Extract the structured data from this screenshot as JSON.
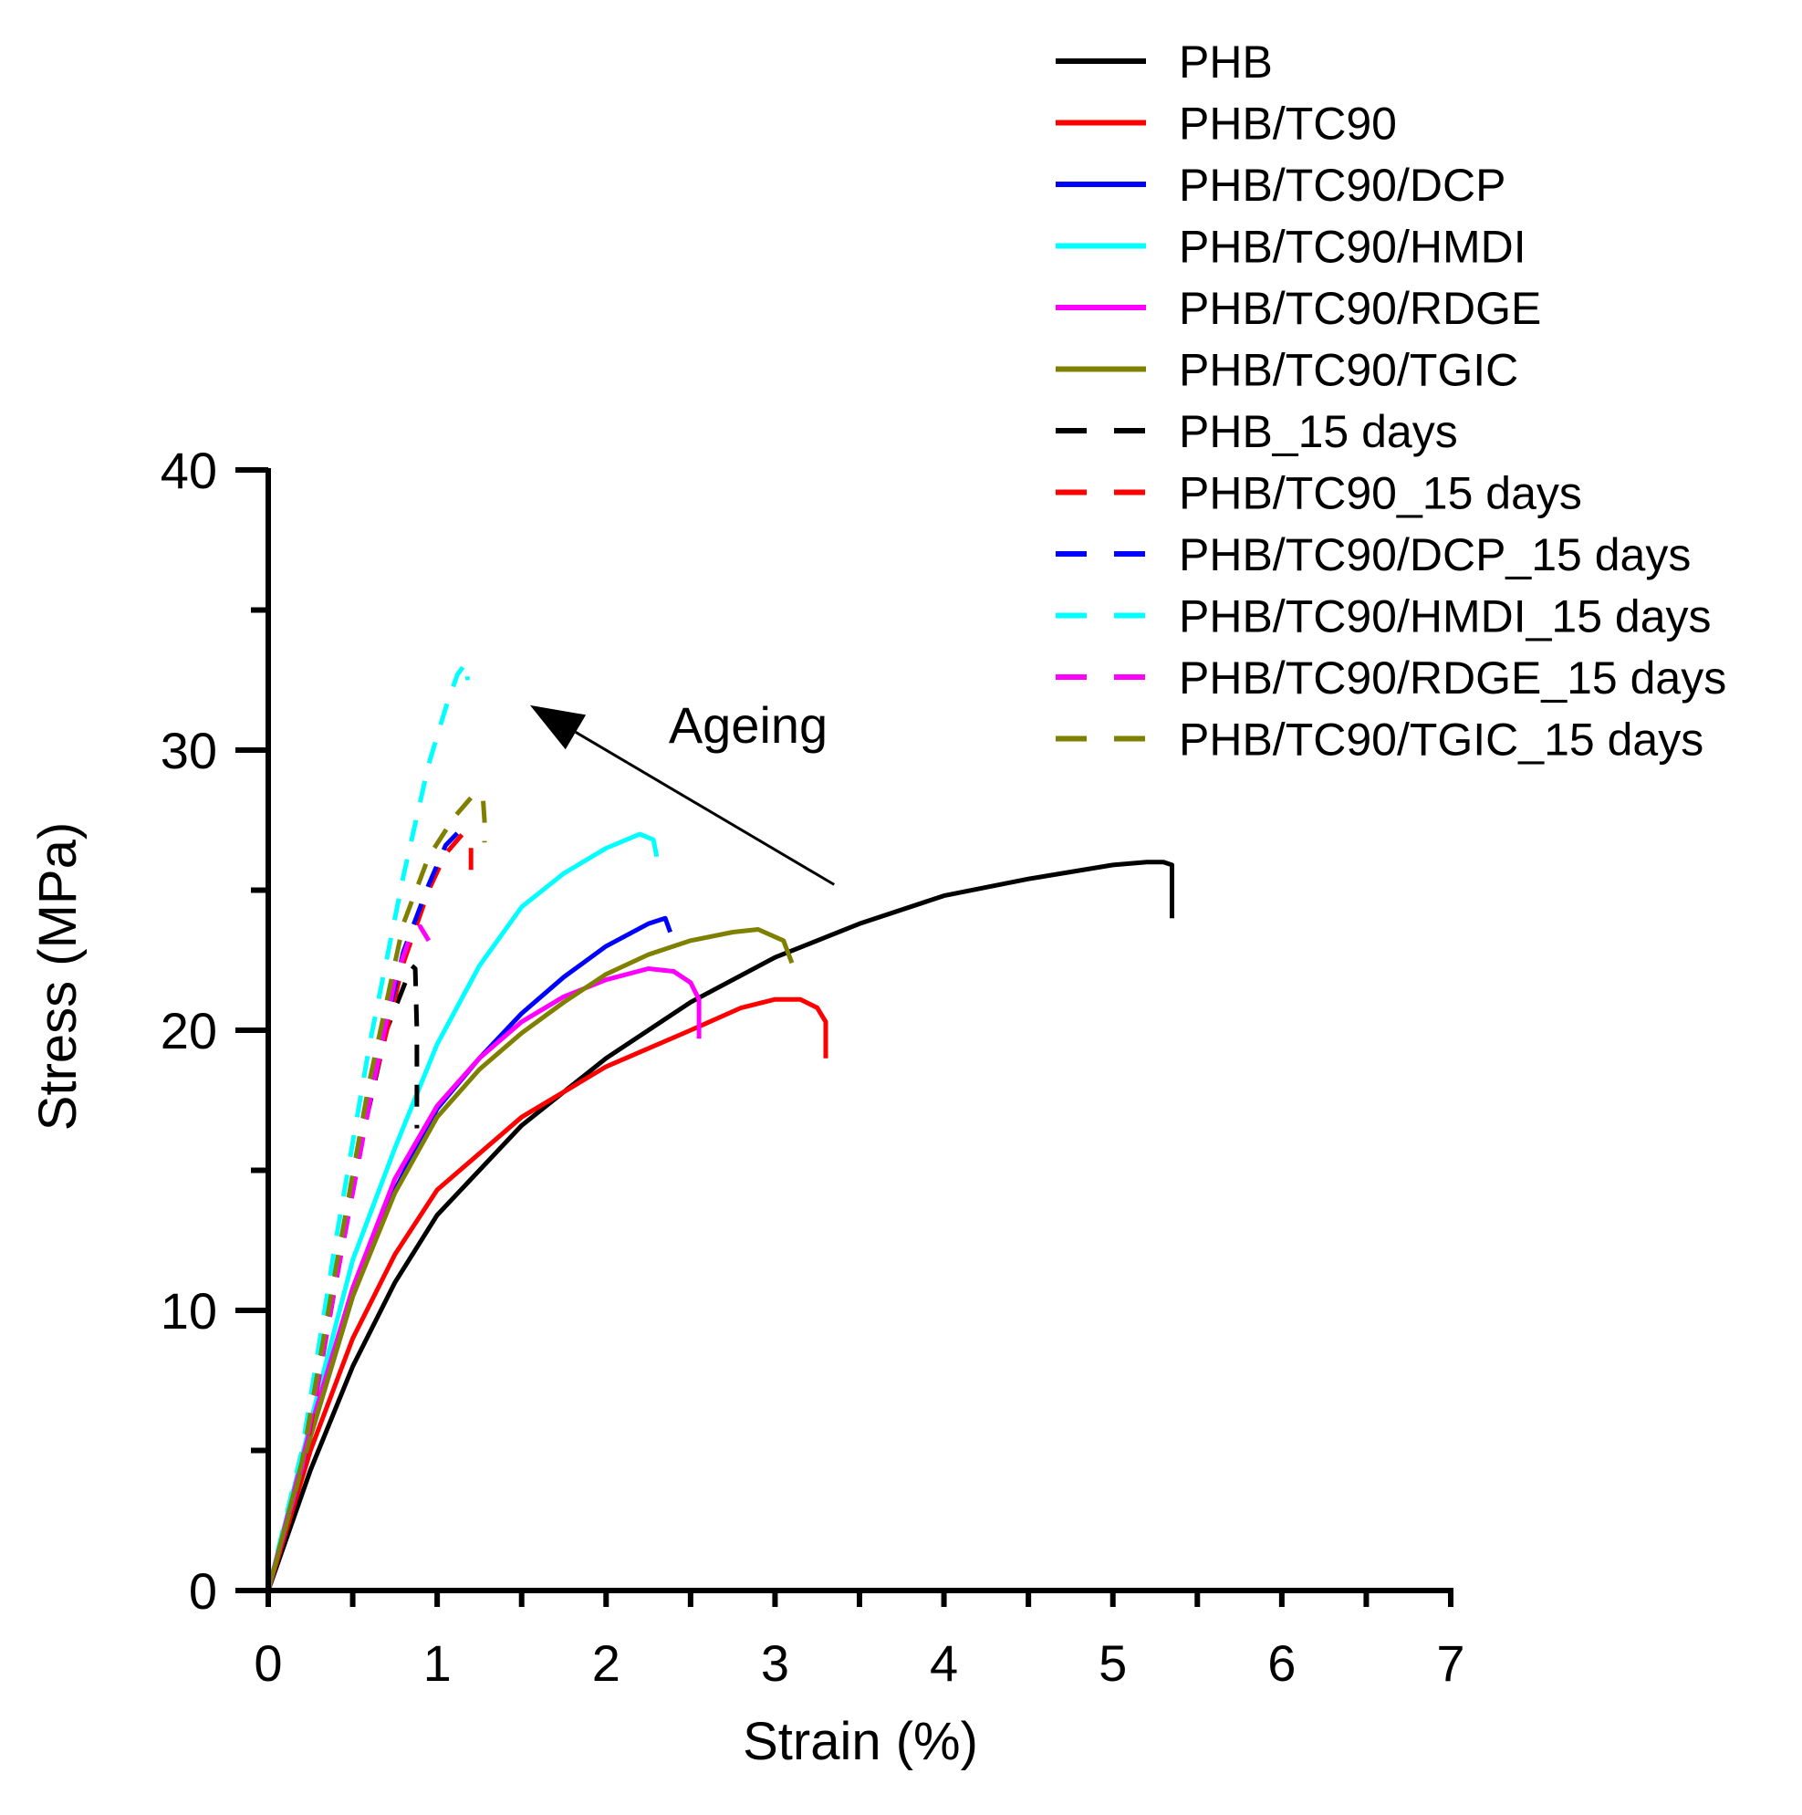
{
  "chart_data": {
    "type": "line",
    "title": "",
    "xlabel": "Strain (%)",
    "ylabel": "Stress (MPa)",
    "xlim": [
      0,
      7
    ],
    "ylim": [
      0,
      40
    ],
    "xticks": [
      0,
      1,
      2,
      3,
      4,
      5,
      6,
      7
    ],
    "yticks": [
      0,
      10,
      20,
      30,
      40
    ],
    "x_minor_step": 0.5,
    "y_minor_step": 5,
    "grid": false,
    "legend_position": "top-right",
    "annotation": {
      "text": "Ageing",
      "arrow_from": [
        3.35,
        25.2
      ],
      "arrow_to": [
        1.55,
        31.6
      ]
    },
    "series": [
      {
        "name": "PHB",
        "color": "#000000",
        "dash": false,
        "points": [
          [
            0,
            0
          ],
          [
            0.25,
            4.3
          ],
          [
            0.5,
            8
          ],
          [
            0.75,
            11
          ],
          [
            1,
            13.4
          ],
          [
            1.5,
            16.6
          ],
          [
            2,
            19
          ],
          [
            2.5,
            21
          ],
          [
            3,
            22.6
          ],
          [
            3.5,
            23.8
          ],
          [
            4,
            24.8
          ],
          [
            4.5,
            25.4
          ],
          [
            5,
            25.9
          ],
          [
            5.2,
            26
          ],
          [
            5.3,
            26
          ],
          [
            5.35,
            25.9
          ],
          [
            5.35,
            24
          ]
        ]
      },
      {
        "name": "PHB/TC90",
        "color": "#ff0000",
        "dash": false,
        "points": [
          [
            0,
            0
          ],
          [
            0.25,
            5
          ],
          [
            0.5,
            9
          ],
          [
            0.75,
            12
          ],
          [
            1,
            14.3
          ],
          [
            1.5,
            16.9
          ],
          [
            2,
            18.7
          ],
          [
            2.5,
            20
          ],
          [
            2.8,
            20.8
          ],
          [
            3,
            21.1
          ],
          [
            3.15,
            21.1
          ],
          [
            3.25,
            20.8
          ],
          [
            3.3,
            20.3
          ],
          [
            3.3,
            19
          ]
        ]
      },
      {
        "name": "PHB/TC90/DCP",
        "color": "#0000ff",
        "dash": false,
        "points": [
          [
            0,
            0
          ],
          [
            0.25,
            5.5
          ],
          [
            0.5,
            10.5
          ],
          [
            0.75,
            14.3
          ],
          [
            1,
            17.2
          ],
          [
            1.25,
            19
          ],
          [
            1.5,
            20.6
          ],
          [
            1.75,
            21.9
          ],
          [
            2,
            23
          ],
          [
            2.25,
            23.8
          ],
          [
            2.35,
            24
          ],
          [
            2.38,
            23.5
          ]
        ]
      },
      {
        "name": "PHB/TC90/HMDI",
        "color": "#00ffff",
        "dash": false,
        "points": [
          [
            0,
            0
          ],
          [
            0.25,
            6
          ],
          [
            0.5,
            11.8
          ],
          [
            0.75,
            15.8
          ],
          [
            1,
            19.5
          ],
          [
            1.25,
            22.3
          ],
          [
            1.5,
            24.4
          ],
          [
            1.75,
            25.6
          ],
          [
            2,
            26.5
          ],
          [
            2.2,
            27
          ],
          [
            2.28,
            26.8
          ],
          [
            2.3,
            26.2
          ]
        ]
      },
      {
        "name": "PHB/TC90/RDGE",
        "color": "#ff00ff",
        "dash": false,
        "points": [
          [
            0,
            0
          ],
          [
            0.25,
            5.8
          ],
          [
            0.5,
            10.8
          ],
          [
            0.75,
            14.7
          ],
          [
            1,
            17.3
          ],
          [
            1.25,
            19
          ],
          [
            1.5,
            20.3
          ],
          [
            1.75,
            21.2
          ],
          [
            2,
            21.8
          ],
          [
            2.25,
            22.2
          ],
          [
            2.4,
            22.1
          ],
          [
            2.5,
            21.7
          ],
          [
            2.55,
            21.1
          ],
          [
            2.55,
            19.7
          ]
        ]
      },
      {
        "name": "PHB/TC90/TGIC",
        "color": "#808000",
        "dash": false,
        "points": [
          [
            0,
            0
          ],
          [
            0.25,
            5.5
          ],
          [
            0.5,
            10.5
          ],
          [
            0.75,
            14.2
          ],
          [
            1,
            16.9
          ],
          [
            1.25,
            18.6
          ],
          [
            1.5,
            19.9
          ],
          [
            1.75,
            21
          ],
          [
            2,
            22
          ],
          [
            2.25,
            22.7
          ],
          [
            2.5,
            23.2
          ],
          [
            2.75,
            23.5
          ],
          [
            2.9,
            23.6
          ],
          [
            3.05,
            23.2
          ],
          [
            3.1,
            22.4
          ]
        ]
      },
      {
        "name": "PHB_15 days",
        "color": "#000000",
        "dash": true,
        "points": [
          [
            0,
            0
          ],
          [
            0.2,
            4.2
          ],
          [
            0.4,
            11
          ],
          [
            0.55,
            16
          ],
          [
            0.7,
            20
          ],
          [
            0.85,
            22.3
          ],
          [
            0.87,
            22.2
          ],
          [
            0.88,
            20
          ],
          [
            0.88,
            16.5
          ]
        ]
      },
      {
        "name": "PHB/TC90_15 days",
        "color": "#ff0000",
        "dash": true,
        "points": [
          [
            0,
            0
          ],
          [
            0.2,
            4.2
          ],
          [
            0.4,
            11
          ],
          [
            0.6,
            17.5
          ],
          [
            0.8,
            22.4
          ],
          [
            0.95,
            25
          ],
          [
            1.05,
            26.3
          ],
          [
            1.15,
            27
          ],
          [
            1.2,
            26.7
          ],
          [
            1.2,
            25.2
          ]
        ]
      },
      {
        "name": "PHB/TC90/DCP_15 days",
        "color": "#0000ff",
        "dash": true,
        "points": [
          [
            0,
            0
          ],
          [
            0.2,
            4.4
          ],
          [
            0.4,
            11.3
          ],
          [
            0.6,
            17.8
          ],
          [
            0.8,
            22.8
          ],
          [
            0.95,
            25.2
          ],
          [
            1.05,
            26.6
          ],
          [
            1.13,
            27.1
          ],
          [
            1.18,
            26.9
          ]
        ]
      },
      {
        "name": "PHB/TC90/HMDI_15 days",
        "color": "#00ffff",
        "dash": true,
        "points": [
          [
            0,
            0
          ],
          [
            0.2,
            5
          ],
          [
            0.4,
            12.5
          ],
          [
            0.6,
            19.5
          ],
          [
            0.8,
            25.5
          ],
          [
            0.95,
            29.5
          ],
          [
            1.05,
            31.5
          ],
          [
            1.12,
            32.7
          ],
          [
            1.17,
            33.1
          ],
          [
            1.18,
            32.5
          ]
        ]
      },
      {
        "name": "PHB/TC90/RDGE_15 days",
        "color": "#ff00ff",
        "dash": true,
        "points": [
          [
            0,
            0
          ],
          [
            0.2,
            4.4
          ],
          [
            0.4,
            11
          ],
          [
            0.6,
            17.4
          ],
          [
            0.75,
            21.8
          ],
          [
            0.85,
            23.5
          ],
          [
            0.9,
            23.7
          ],
          [
            0.95,
            23.2
          ]
        ]
      },
      {
        "name": "PHB/TC90/TGIC_15 days",
        "color": "#808000",
        "dash": true,
        "points": [
          [
            0,
            0
          ],
          [
            0.2,
            4.6
          ],
          [
            0.4,
            11.5
          ],
          [
            0.6,
            18.2
          ],
          [
            0.8,
            23.8
          ],
          [
            0.95,
            26.2
          ],
          [
            1.1,
            27.6
          ],
          [
            1.2,
            28.3
          ],
          [
            1.27,
            28.4
          ],
          [
            1.28,
            27.5
          ],
          [
            1.28,
            26.7
          ]
        ]
      }
    ]
  }
}
